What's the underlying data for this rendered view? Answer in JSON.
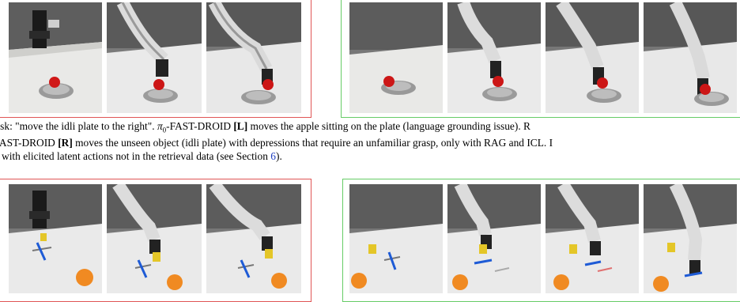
{
  "figure": {
    "caption": {
      "task_prefix": "Task: \"move the idli plate to the right\". ",
      "pi": "π",
      "pi_sub": "0",
      "model_name": "-FAST-DROID ",
      "left_tag": "[L]",
      "line1_rest": " moves the apple sitting on the plate (language grounding issue). R",
      "line2_a": "-FAST-DROID ",
      "right_tag": "[R]",
      "line2_rest": " moves the unseen object (idli plate) with depressions that require an unfamiliar grasp, only with RAG and ICL. I",
      "line3_a": "p with elicited latent actions not in the retrieval data (see Section ",
      "section_ref": "6",
      "line3_end": ")."
    }
  }
}
